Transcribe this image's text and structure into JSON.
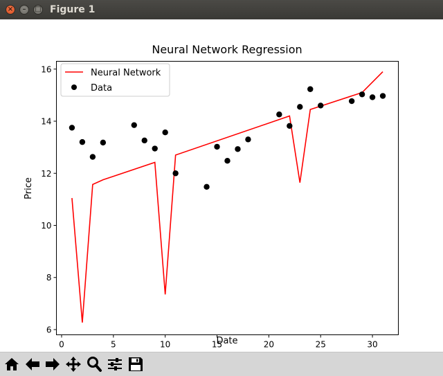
{
  "window": {
    "title": "Figure 1",
    "close_glyph": "×",
    "minimize_glyph": "–",
    "maximize_glyph": "□"
  },
  "toolbar": {
    "buttons": [
      {
        "name": "home-button",
        "icon": "home-icon"
      },
      {
        "name": "back-button",
        "icon": "arrow-left-icon"
      },
      {
        "name": "forward-button",
        "icon": "arrow-right-icon"
      },
      {
        "name": "pan-button",
        "icon": "move-icon"
      },
      {
        "name": "zoom-button",
        "icon": "magnifier-icon"
      },
      {
        "name": "configure-subplots-button",
        "icon": "sliders-icon"
      },
      {
        "name": "save-button",
        "icon": "floppy-disk-icon"
      }
    ]
  },
  "chart_data": {
    "type": "line",
    "title": "Neural Network Regression",
    "xlabel": "Date",
    "ylabel": "Price",
    "xlim": [
      -0.5,
      32.5
    ],
    "ylim": [
      5.8,
      16.3
    ],
    "xticks": [
      0,
      5,
      10,
      15,
      20,
      25,
      30
    ],
    "yticks": [
      6,
      8,
      10,
      12,
      14,
      16
    ],
    "grid": false,
    "legend_position": "upper-left",
    "series": [
      {
        "name": "Neural Network",
        "kind": "line",
        "color": "#ff0000",
        "x": [
          1,
          2,
          3,
          4,
          9,
          10,
          11,
          22,
          23,
          24,
          25,
          29,
          31
        ],
        "y": [
          11.05,
          6.27,
          11.57,
          11.75,
          12.42,
          7.35,
          12.7,
          14.2,
          11.64,
          14.45,
          14.58,
          15.1,
          15.9
        ]
      },
      {
        "name": "Data",
        "kind": "scatter",
        "color": "#000000",
        "x": [
          1,
          2,
          3,
          4,
          7,
          8,
          9,
          10,
          11,
          14,
          15,
          16,
          17,
          18,
          21,
          22,
          23,
          24,
          25,
          28,
          29,
          30,
          31
        ],
        "y": [
          13.75,
          13.2,
          12.63,
          13.18,
          13.85,
          13.26,
          12.95,
          13.57,
          12.0,
          11.48,
          13.02,
          12.48,
          12.93,
          13.3,
          14.26,
          13.82,
          14.55,
          15.23,
          14.6,
          14.77,
          15.03,
          14.92,
          14.97
        ]
      }
    ]
  }
}
